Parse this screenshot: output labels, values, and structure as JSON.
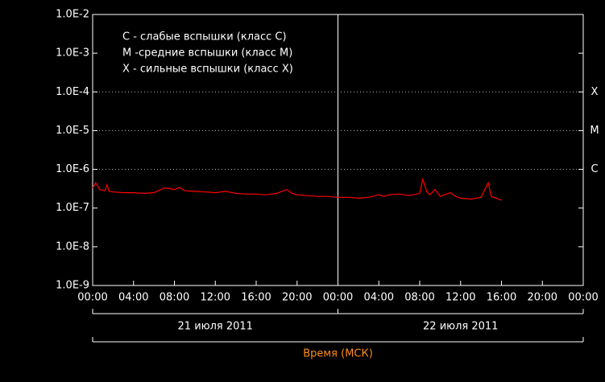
{
  "chart_data": {
    "type": "line",
    "log_scale": true,
    "legend_notes": [
      "C - слабые вспышки (класс C)",
      "M -средние вспышки (класс M)",
      "X - сильные вспышки (класс X)"
    ],
    "thresholds": [
      {
        "value": 0.0001,
        "label": "X"
      },
      {
        "value": 1e-05,
        "label": "M"
      },
      {
        "value": 1e-06,
        "label": "C"
      }
    ],
    "date_labels": [
      "21 июля 2011",
      "22 июля 2011"
    ],
    "day_boundary": 24,
    "x_label": "Время (МСК)",
    "xlim": [
      0,
      48
    ],
    "xticks": [
      {
        "value": 0,
        "label": "00:00"
      },
      {
        "value": 4,
        "label": "04:00"
      },
      {
        "value": 8,
        "label": "08:00"
      },
      {
        "value": 12,
        "label": "12:00"
      },
      {
        "value": 16,
        "label": "16:00"
      },
      {
        "value": 20,
        "label": "20:00"
      },
      {
        "value": 24,
        "label": "00:00"
      },
      {
        "value": 28,
        "label": "04:00"
      },
      {
        "value": 32,
        "label": "08:00"
      },
      {
        "value": 36,
        "label": "12:00"
      },
      {
        "value": 40,
        "label": "16:00"
      },
      {
        "value": 44,
        "label": "20:00"
      },
      {
        "value": 48,
        "label": "00:00"
      }
    ],
    "ylim": [
      1e-09,
      0.01
    ],
    "yticks": [
      {
        "value": 0.01,
        "label": "1.0E-2"
      },
      {
        "value": 0.001,
        "label": "1.0E-3"
      },
      {
        "value": 0.0001,
        "label": "1.0E-4"
      },
      {
        "value": 1e-05,
        "label": "1.0E-5"
      },
      {
        "value": 1e-06,
        "label": "1.0E-6"
      },
      {
        "value": 1e-07,
        "label": "1.0E-7"
      },
      {
        "value": 1e-08,
        "label": "1.0E-8"
      },
      {
        "value": 1e-09,
        "label": "1.0E-9"
      }
    ],
    "x": [
      0,
      0.3,
      0.7,
      1.2,
      1.4,
      1.6,
      2,
      3,
      4,
      5,
      6,
      7,
      7.5,
      8,
      8.5,
      9,
      10,
      11,
      12,
      13,
      14,
      15,
      16,
      17,
      18,
      19,
      19.5,
      20,
      21,
      22,
      23,
      24,
      25,
      26,
      27,
      28,
      28.5,
      29,
      30,
      31,
      32,
      32.3,
      32.7,
      33,
      33.5,
      34,
      35,
      35.5,
      36,
      37,
      38,
      38.7,
      39,
      40
    ],
    "series": [
      {
        "color": "#ff0000",
        "values": [
          3.3e-07,
          4.5e-07,
          3e-07,
          2.8e-07,
          4e-07,
          2.7e-07,
          2.6e-07,
          2.5e-07,
          2.5e-07,
          2.4e-07,
          2.5e-07,
          3.3e-07,
          3.2e-07,
          3e-07,
          3.4e-07,
          2.8e-07,
          2.7e-07,
          2.6e-07,
          2.5e-07,
          2.7e-07,
          2.4e-07,
          2.3e-07,
          2.3e-07,
          2.2e-07,
          2.4e-07,
          3e-07,
          2.4e-07,
          2.2e-07,
          2.1e-07,
          2e-07,
          2e-07,
          1.9e-07,
          1.9e-07,
          1.8e-07,
          1.9e-07,
          2.2e-07,
          2e-07,
          2.2e-07,
          2.3e-07,
          2.1e-07,
          2.4e-07,
          5.5e-07,
          2.6e-07,
          2.2e-07,
          3e-07,
          2e-07,
          2.5e-07,
          2e-07,
          1.8e-07,
          1.7e-07,
          1.9e-07,
          4.5e-07,
          2e-07,
          1.6e-07
        ]
      }
    ]
  }
}
